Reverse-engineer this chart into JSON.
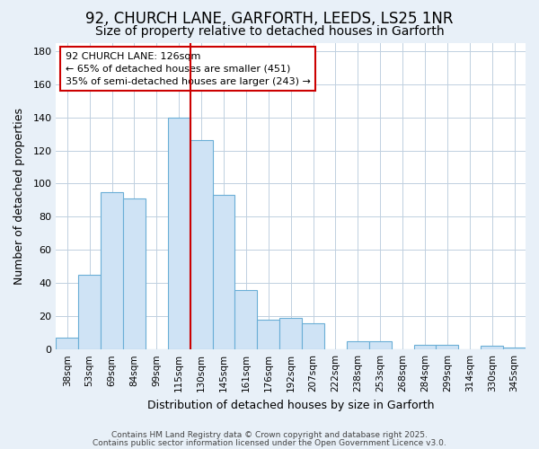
{
  "title1": "92, CHURCH LANE, GARFORTH, LEEDS, LS25 1NR",
  "title2": "Size of property relative to detached houses in Garforth",
  "xlabel": "Distribution of detached houses by size in Garforth",
  "ylabel": "Number of detached properties",
  "categories": [
    "38sqm",
    "53sqm",
    "69sqm",
    "84sqm",
    "99sqm",
    "115sqm",
    "130sqm",
    "145sqm",
    "161sqm",
    "176sqm",
    "192sqm",
    "207sqm",
    "222sqm",
    "238sqm",
    "253sqm",
    "268sqm",
    "284sqm",
    "299sqm",
    "314sqm",
    "330sqm",
    "345sqm"
  ],
  "values": [
    7,
    45,
    95,
    91,
    0,
    140,
    126,
    93,
    36,
    18,
    19,
    16,
    0,
    5,
    5,
    0,
    3,
    3,
    0,
    2,
    1
  ],
  "bar_color": "#cfe3f5",
  "bar_edge_color": "#6aaed6",
  "vline_color": "#cc0000",
  "annotation_text": "92 CHURCH LANE: 126sqm\n← 65% of detached houses are smaller (451)\n35% of semi-detached houses are larger (243) →",
  "annotation_box_color": "#ffffff",
  "annotation_box_edge": "#cc0000",
  "ylim": [
    0,
    185
  ],
  "yticks": [
    0,
    20,
    40,
    60,
    80,
    100,
    120,
    140,
    160,
    180
  ],
  "plot_bg_color": "#ffffff",
  "fig_bg_color": "#e8f0f8",
  "footer1": "Contains HM Land Registry data © Crown copyright and database right 2025.",
  "footer2": "Contains public sector information licensed under the Open Government Licence v3.0.",
  "title1_fontsize": 12,
  "title2_fontsize": 10
}
